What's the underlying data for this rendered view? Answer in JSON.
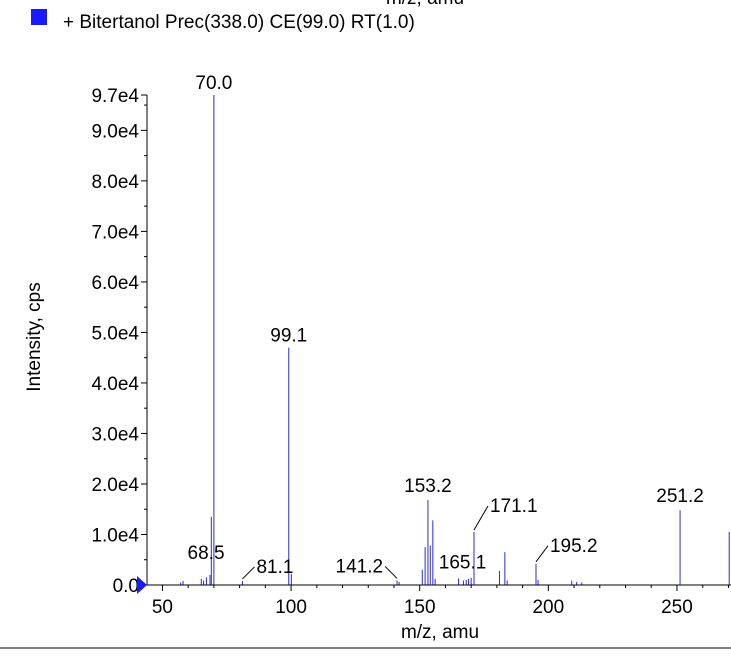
{
  "chart_data": {
    "type": "bar",
    "title_fragment": "m/z, amu",
    "legend": [
      {
        "label": "+ Bitertanol Prec(338.0) CE(99.0) RT(1.0)",
        "color": "#1a1aff"
      }
    ],
    "xlabel": "m/z, amu",
    "ylabel": "Intensity, cps",
    "xlim": [
      44,
      271
    ],
    "ylim": [
      0,
      97000
    ],
    "x_ticks": [
      50,
      100,
      150,
      200,
      250
    ],
    "x_tick_labels": [
      "50",
      "100",
      "150",
      "200",
      "250"
    ],
    "y_ticks": [
      0,
      10000,
      20000,
      30000,
      40000,
      50000,
      60000,
      70000,
      80000,
      90000,
      97000
    ],
    "y_tick_labels": [
      "0.0",
      "1.0e4",
      "2.0e4",
      "3.0e4",
      "4.0e4",
      "5.0e4",
      "6.0e4",
      "7.0e4",
      "8.0e4",
      "9.0e4",
      "9.7e4"
    ],
    "series_color": "#2a2ad8",
    "peaks": [
      {
        "x": 57.1,
        "y": 500
      },
      {
        "x": 58.0,
        "y": 800
      },
      {
        "x": 65.1,
        "y": 1200
      },
      {
        "x": 66.0,
        "y": 900
      },
      {
        "x": 67.1,
        "y": 1500
      },
      {
        "x": 68.5,
        "y": 2000
      },
      {
        "x": 69.0,
        "y": 13500
      },
      {
        "x": 70.0,
        "y": 97000
      },
      {
        "x": 81.1,
        "y": 800
      },
      {
        "x": 99.1,
        "y": 47000
      },
      {
        "x": 100.1,
        "y": 2200
      },
      {
        "x": 141.2,
        "y": 900
      },
      {
        "x": 142.0,
        "y": 600
      },
      {
        "x": 151.0,
        "y": 3000
      },
      {
        "x": 152.1,
        "y": 7500
      },
      {
        "x": 153.2,
        "y": 16800
      },
      {
        "x": 154.1,
        "y": 7800
      },
      {
        "x": 155.1,
        "y": 12800
      },
      {
        "x": 156.0,
        "y": 1200
      },
      {
        "x": 165.1,
        "y": 1300
      },
      {
        "x": 167.0,
        "y": 900
      },
      {
        "x": 168.1,
        "y": 1000
      },
      {
        "x": 169.0,
        "y": 1200
      },
      {
        "x": 170.0,
        "y": 1400
      },
      {
        "x": 171.1,
        "y": 10500
      },
      {
        "x": 181.0,
        "y": 2800
      },
      {
        "x": 183.1,
        "y": 6500
      },
      {
        "x": 184.0,
        "y": 900
      },
      {
        "x": 195.2,
        "y": 4200
      },
      {
        "x": 196.0,
        "y": 1000
      },
      {
        "x": 209.1,
        "y": 900
      },
      {
        "x": 211.0,
        "y": 600
      },
      {
        "x": 213.0,
        "y": 500
      },
      {
        "x": 251.2,
        "y": 14800
      },
      {
        "x": 270.3,
        "y": 10500
      }
    ],
    "annotations": [
      {
        "text": "70.0",
        "x": 70.0,
        "y": 97000
      },
      {
        "text": "99.1",
        "x": 99.1,
        "y": 47000
      },
      {
        "text": "68.5",
        "x": 68.5,
        "y": 2000
      },
      {
        "text": "81.1",
        "x": 81.1,
        "y": 800
      },
      {
        "text": "141.2",
        "x": 141.2,
        "y": 900
      },
      {
        "text": "153.2",
        "x": 153.2,
        "y": 16800
      },
      {
        "text": "165.1",
        "x": 165.1,
        "y": 1300
      },
      {
        "text": "171.1",
        "x": 171.1,
        "y": 10500
      },
      {
        "text": "195.2",
        "x": 195.2,
        "y": 4200
      },
      {
        "text": "251.2",
        "x": 251.2,
        "y": 14800
      }
    ]
  }
}
